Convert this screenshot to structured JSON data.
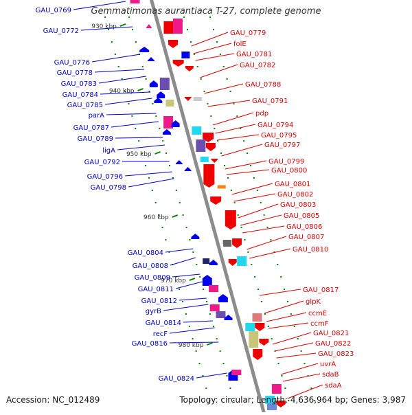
{
  "title": "Gemmatimonas aurantiaca T-27, complete genome",
  "accession": "Accession: NC_012489",
  "summary": "Topology: circular; Length: 4,636,964 bp; Genes: 3,987",
  "colors": {
    "backbone": "#8c8c8c",
    "left_label": "#0000cc",
    "right_label": "#dd0000",
    "tick": "#008000",
    "red_gene": "#ee0000",
    "blue_gene": "#0000ee",
    "magenta_gene": "#ee1a8a",
    "purple_gene": "#6a4fb0",
    "cyan_gene": "#22d8ee",
    "orange_gene": "#ee8a10",
    "khaki_gene": "#c8c47a"
  },
  "kbp_ticks": [
    "930 kbp",
    "940 kbp",
    "950 kbp",
    "960 kbp",
    "970 kbp",
    "980 kbp"
  ],
  "left_genes": [
    "GAU_0769",
    "GAU_0772",
    "GAU_0776",
    "GAU_0778",
    "GAU_0783",
    "GAU_0784",
    "GAU_0785",
    "parA",
    "GAU_0787",
    "GAU_0789",
    "ligA",
    "GAU_0792",
    "GAU_0796",
    "GAU_0798",
    "GAU_0804",
    "GAU_0808",
    "GAU_0809",
    "GAU_0811",
    "GAU_0812",
    "gyrB",
    "GAU_0814",
    "recF",
    "GAU_0816",
    "GAU_0824"
  ],
  "right_genes": [
    "GAU_0779",
    "folE",
    "GAU_0781",
    "GAU_0782",
    "GAU_0788",
    "GAU_0791",
    "pdp",
    "GAU_0794",
    "GAU_0795",
    "GAU_0797",
    "GAU_0799",
    "GAU_0800",
    "GAU_0801",
    "GAU_0802",
    "GAU_0803",
    "GAU_0805",
    "GAU_0806",
    "GAU_0807",
    "GAU_0810",
    "GAU_0817",
    "glpK",
    "ccmE",
    "ccmF",
    "GAU_0821",
    "GAU_0822",
    "GAU_0823",
    "uvrA",
    "sdaB",
    "sdaA"
  ]
}
